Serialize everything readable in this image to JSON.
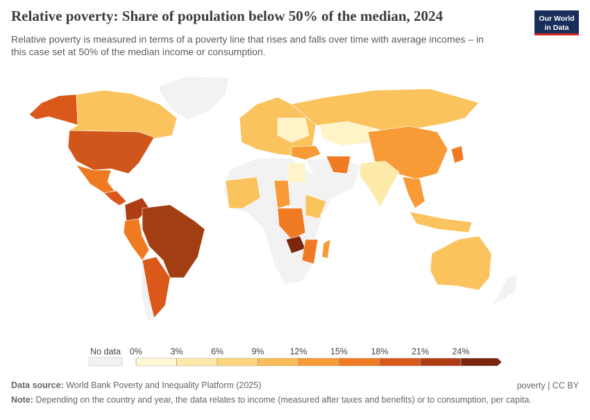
{
  "header": {
    "title": "Relative poverty: Share of population below 50% of the median, 2024",
    "subtitle": [
      "Relative poverty is measured in terms of a poverty line that rises and falls over time with average incomes – in",
      "this case set at 50% of the median income or consumption."
    ],
    "logo": [
      "Our World",
      "in Data"
    ]
  },
  "legend": {
    "no_data": "No data",
    "ticks": [
      "0%",
      "3%",
      "6%",
      "9%",
      "12%",
      "15%",
      "18%",
      "21%",
      "24%"
    ],
    "colors": [
      "#fff7d4",
      "#fde9a8",
      "#fdd57e",
      "#fbbd57",
      "#f89a35",
      "#ef7a22",
      "#d9581a",
      "#b03c13",
      "#7b2710"
    ]
  },
  "footer": {
    "source_label": "Data source:",
    "source": "World Bank Poverty and Inequality Platform (2025)",
    "credit": "poverty | CC BY",
    "note_label": "Note:",
    "note": "Depending on the country and year, the data relates to income (measured after taxes and benefits) or to consumption, per capita."
  }
}
